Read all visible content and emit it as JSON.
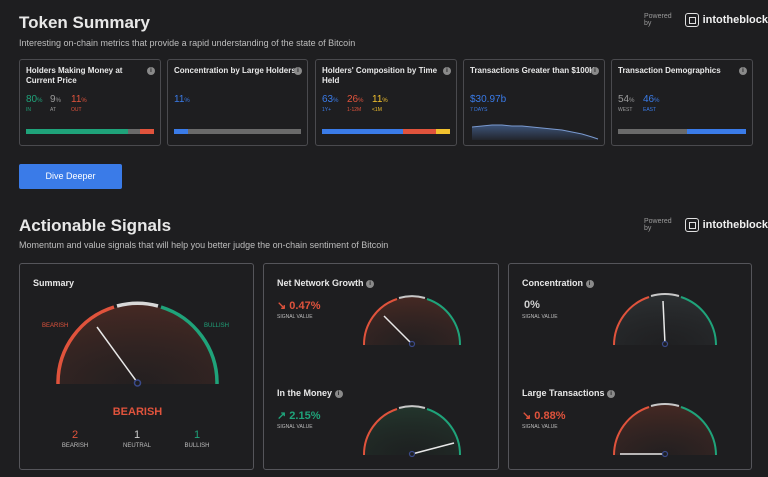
{
  "token_summary": {
    "title": "Token Summary",
    "subtitle": "Interesting on-chain metrics that provide a rapid understanding of the state of Bitcoin",
    "powered_by": "Powered by",
    "brand": "intotheblock",
    "cards": {
      "holders": {
        "title_line1": "Holders Making Money at",
        "title_line2": "Current Price",
        "in_value": "80",
        "in_label": "IN",
        "at_value": "9",
        "at_label": "AT",
        "out_value": "11",
        "out_label": "OUT",
        "pct": "%"
      },
      "concentration": {
        "title": "Concentration by Large Holders",
        "value": "11",
        "pct": "%"
      },
      "composition": {
        "title_line1": "Holders' Composition by Time",
        "title_line2": "Held",
        "v1": "63",
        "l1": "1Y+",
        "v2": "26",
        "l2": "1-12M",
        "v3": "11",
        "l3": "<1M",
        "pct": "%"
      },
      "transactions": {
        "title": "Transactions Greater than $100K",
        "value": "$30.97b",
        "label": "7 DAYS"
      },
      "demographics": {
        "title": "Transaction Demographics",
        "west_value": "54",
        "west_label": "WEST",
        "east_value": "46",
        "east_label": "EAST",
        "pct": "%"
      }
    },
    "button": "Dive Deeper"
  },
  "actionable_signals": {
    "title": "Actionable Signals",
    "subtitle": "Momentum and value signals that will help you better judge the on-chain sentiment of Bitcoin",
    "powered_by": "Powered by",
    "brand": "intotheblock",
    "summary": {
      "title": "Summary",
      "bearish_label": "BEARISH",
      "bullish_label": "BULLISH",
      "verdict": "BEARISH",
      "counts": [
        {
          "value": "2",
          "label": "BEARISH"
        },
        {
          "value": "1",
          "label": "NEUTRAL"
        },
        {
          "value": "1",
          "label": "BULLISH"
        }
      ]
    },
    "signals": {
      "net_network_growth": {
        "title": "Net Network Growth",
        "value": "0.47%",
        "label": "SIGNAL VALUE"
      },
      "in_the_money": {
        "title": "In the Money",
        "value": "2.15%",
        "label": "SIGNAL VALUE"
      },
      "concentration": {
        "title": "Concentration",
        "value": "0%",
        "label": "SIGNAL VALUE"
      },
      "large_transactions": {
        "title": "Large Transactions",
        "value": "0.88%",
        "label": "SIGNAL VALUE"
      }
    }
  },
  "colors": {
    "green": "#1fa37a",
    "red": "#e0533c",
    "blue": "#3a7be8",
    "yellow": "#f2c12e",
    "gray": "#6a6a6a"
  }
}
